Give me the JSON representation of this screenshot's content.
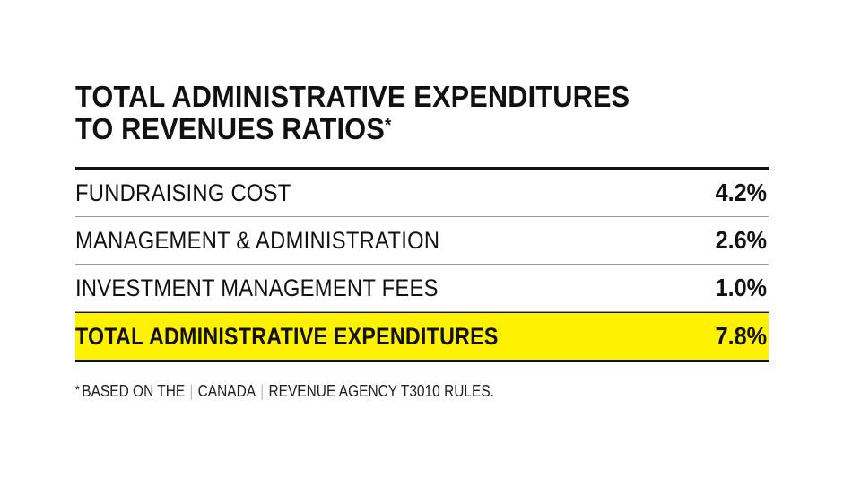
{
  "title": {
    "line1": "TOTAL ADMINISTRATIVE EXPENDITURES",
    "line2": "TO REVENUES RATIOS",
    "marker": "*"
  },
  "rows": [
    {
      "label": "FUNDRAISING COST",
      "value": "4.2%"
    },
    {
      "label": "MANAGEMENT & ADMINISTRATION",
      "value": "2.6%"
    },
    {
      "label": "INVESTMENT MANAGEMENT FEES",
      "value": "1.0%"
    }
  ],
  "total": {
    "label": "TOTAL ADMINISTRATIVE EXPENDITURES",
    "value": "7.8%"
  },
  "footnote": {
    "marker": "*",
    "part1": "BASED ON THE",
    "part2": "CANADA",
    "part3": "REVENUE AGENCY T3010 RULES."
  },
  "colors": {
    "highlight": "#fff200",
    "text": "#111111",
    "rule": "#9a9a9a"
  }
}
